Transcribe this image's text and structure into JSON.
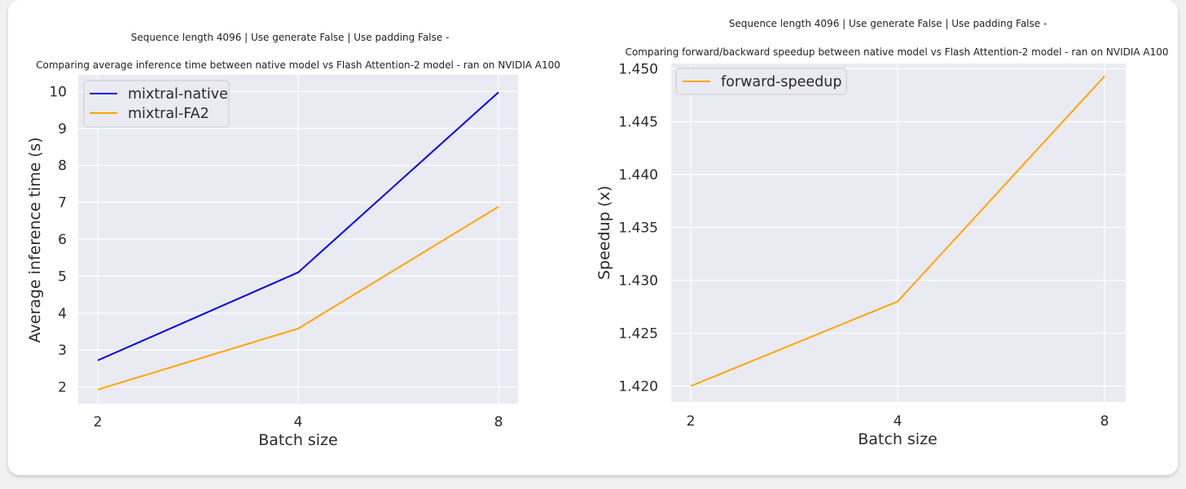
{
  "chart_data": [
    {
      "type": "line",
      "title": "Sequence length 4096 | Use generate False | Use padding False -",
      "subtitle": "Comparing average inference time between native model vs Flash Attention-2 model - ran on NVIDIA A100",
      "xlabel": "Batch size",
      "ylabel": "Average inference time (s)",
      "x": [
        2,
        4,
        8
      ],
      "xticks": [
        "2",
        "4",
        "8"
      ],
      "yticks": [
        2,
        3,
        4,
        5,
        6,
        7,
        8,
        9,
        10
      ],
      "ylim": [
        1.55,
        10.45
      ],
      "grid": true,
      "legend_position": "top-left",
      "series": [
        {
          "name": "mixtral-native",
          "color": "#0000ee",
          "values": [
            2.72,
            5.1,
            9.98
          ]
        },
        {
          "name": "mixtral-FA2",
          "color": "#ffa500",
          "values": [
            1.93,
            3.58,
            6.88
          ]
        }
      ]
    },
    {
      "type": "line",
      "title": "Sequence length 4096 | Use generate False | Use padding False -",
      "subtitle": "Comparing forward/backward speedup between native model vs Flash Attention-2 model - ran on NVIDIA A100",
      "xlabel": "Batch size",
      "ylabel": "Speedup (x)",
      "x": [
        2,
        4,
        8
      ],
      "xticks": [
        "2",
        "4",
        "8"
      ],
      "yticks": [
        "1.420",
        "1.425",
        "1.430",
        "1.435",
        "1.440",
        "1.445",
        "1.450"
      ],
      "ylim": [
        1.4185,
        1.4505
      ],
      "grid": true,
      "legend_position": "top-left",
      "series": [
        {
          "name": "forward-speedup",
          "color": "#ffa500",
          "values": [
            1.42,
            1.428,
            1.4493
          ]
        }
      ]
    }
  ],
  "colors": {
    "plot_background": "#eaeaf2",
    "grid": "#ffffff",
    "card": "#ffffff"
  }
}
